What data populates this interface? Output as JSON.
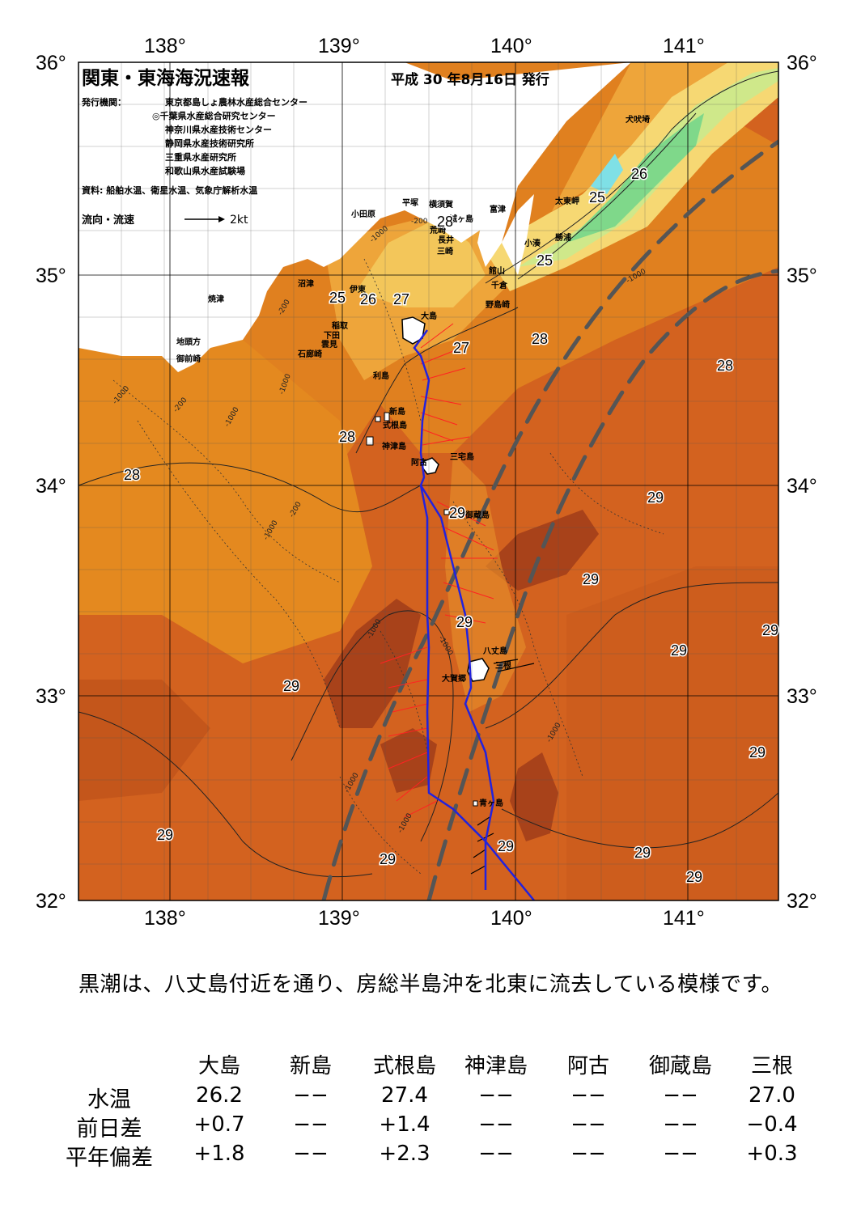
{
  "title": "関東・東海海況速報",
  "issue_date": "平成 30 年8月16日 発行",
  "issuer_label": "発行機関：",
  "issuers": [
    "東京都島しょ農林水産総合センター",
    "◎千葉県水産総合研究センター",
    "神奈川県水産技術センター",
    "静岡県水産技術研究所",
    "三重県水産研究所",
    "和歌山県水産試験場"
  ],
  "source": "資料: 船舶水温、衛星水温、気象庁解析水温",
  "flow_legend": {
    "label": "流向・流速",
    "speed": "2kt"
  },
  "axes": {
    "lon_labels": [
      "138°",
      "139°",
      "140°",
      "141°"
    ],
    "lat_labels": [
      "36°",
      "35°",
      "34°",
      "33°",
      "32°"
    ]
  },
  "place_names": [
    "犬吠埼",
    "太東岬",
    "勝浦",
    "小湊",
    "館山",
    "千倉",
    "野島崎",
    "富津",
    "横須賀",
    "城ヶ島",
    "荒崎",
    "長井",
    "三崎",
    "平塚",
    "小田原",
    "沼津",
    "伊東",
    "稲取",
    "下田",
    "雲見",
    "石廊崎",
    "焼津",
    "地頭方",
    "御前崎",
    "大島",
    "利島",
    "新島",
    "式根島",
    "神津島",
    "三宅島",
    "阿古",
    "御蔵島",
    "八丈島",
    "三根",
    "大賀郷",
    "青ヶ島"
  ],
  "isotherm_labels": [
    "26",
    "25",
    "25",
    "25",
    "26",
    "27",
    "27",
    "28",
    "28",
    "28",
    "28",
    "28",
    "29",
    "29",
    "29",
    "29",
    "29",
    "29",
    "29",
    "29",
    "29",
    "29",
    "29",
    "29",
    "29"
  ],
  "depth_labels": [
    "-200",
    "-1000"
  ],
  "summary": "黒潮は、八丈島付近を通り、房総半島沖を北東に流去している模様です。",
  "table": {
    "columns": [
      "大島",
      "新島",
      "式根島",
      "神津島",
      "阿古",
      "御蔵島",
      "三根"
    ],
    "rows": [
      {
        "label": "水温",
        "values": [
          "26.2",
          "−−",
          "27.4",
          "−−",
          "−−",
          "−−",
          "27.0"
        ]
      },
      {
        "label": "前日差",
        "values": [
          "+0.7",
          "−−",
          "+1.4",
          "−−",
          "−−",
          "−−",
          "−0.4"
        ]
      },
      {
        "label": "平年偏差",
        "values": [
          "+1.8",
          "−−",
          "+2.3",
          "−−",
          "−−",
          "−−",
          "+0.3"
        ]
      }
    ]
  },
  "colors": {
    "sst_29": "#c8501a",
    "sst_28": "#e07a1e",
    "sst_27": "#eea23a",
    "sst_26": "#f6d873",
    "sst_25": "#cfe88a",
    "sst_24": "#7fd88a",
    "kuroshio": "#555555",
    "track": "#2222dd",
    "vectors": "#ff2222"
  }
}
